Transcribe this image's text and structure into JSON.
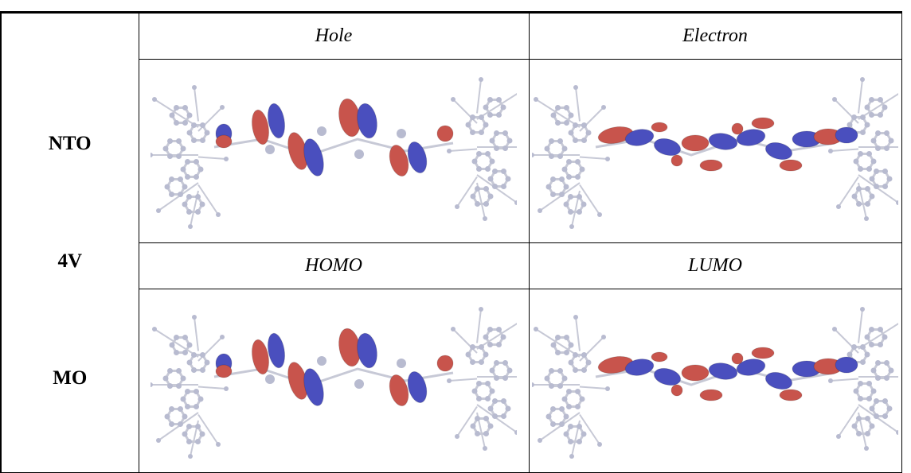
{
  "row_labels": [
    "NTO",
    "4V",
    "MO"
  ],
  "columns": {
    "nto": [
      "Hole",
      "Electron"
    ],
    "mo": [
      "HOMO",
      "LUMO"
    ]
  },
  "colors": {
    "positive_lobe": "#c8544c",
    "negative_lobe": "#4a4fbe",
    "atom": "#b8bbd0",
    "bond": "#c7c9d6"
  },
  "images": {
    "nto_hole": "hole-orbital-render",
    "nto_electron": "electron-orbital-render",
    "mo_homo": "homo-orbital-render",
    "mo_lumo": "lumo-orbital-render"
  }
}
